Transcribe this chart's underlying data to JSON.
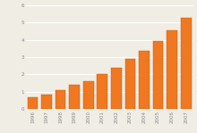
{
  "years": [
    1996,
    1997,
    1998,
    1999,
    2000,
    2001,
    2002,
    2003,
    2004,
    2005,
    2006,
    2007
  ],
  "values": [
    0.7,
    0.85,
    1.1,
    1.38,
    1.62,
    2.0,
    2.38,
    2.9,
    3.35,
    3.93,
    4.55,
    5.25
  ],
  "bar_color": "#F07820",
  "bar_edge_color": "#C85000",
  "ylim": [
    0,
    6
  ],
  "yticks": [
    0,
    1,
    2,
    3,
    4,
    5,
    6
  ],
  "background_color": "#f0ede5",
  "grid_color": "#ffffff",
  "tick_color": "#888888",
  "tick_fontsize": 4.0,
  "bar_width": 0.75
}
